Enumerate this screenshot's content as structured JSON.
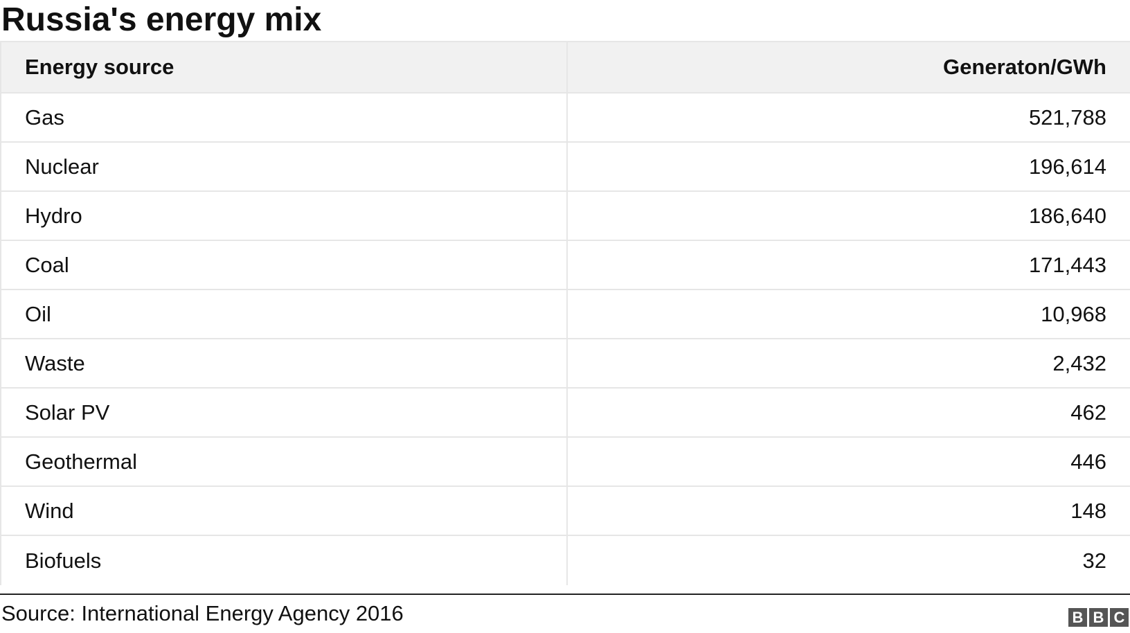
{
  "chart_data": {
    "type": "table",
    "title": "Russia's energy mix",
    "columns": [
      "Energy source",
      "Generaton/GWh"
    ],
    "rows": [
      {
        "source": "Gas",
        "generation": "521,788"
      },
      {
        "source": "Nuclear",
        "generation": "196,614"
      },
      {
        "source": "Hydro",
        "generation": "186,640"
      },
      {
        "source": "Coal",
        "generation": "171,443"
      },
      {
        "source": "Oil",
        "generation": "10,968"
      },
      {
        "source": "Waste",
        "generation": "2,432"
      },
      {
        "source": "Solar PV",
        "generation": "462"
      },
      {
        "source": "Geothermal",
        "generation": "446"
      },
      {
        "source": "Wind",
        "generation": "148"
      },
      {
        "source": "Biofuels",
        "generation": "32"
      }
    ],
    "values": [
      521788,
      196614,
      186640,
      171443,
      10968,
      2432,
      462,
      446,
      148,
      32
    ],
    "categories": [
      "Gas",
      "Nuclear",
      "Hydro",
      "Coal",
      "Oil",
      "Waste",
      "Solar PV",
      "Geothermal",
      "Wind",
      "Biofuels"
    ]
  },
  "footer": {
    "source": "Source: International Energy Agency 2016",
    "logo_letters": [
      "B",
      "B",
      "C"
    ]
  },
  "colors": {
    "header_bg": "#f1f1f1",
    "grid": "#e6e6e6",
    "text": "#111111",
    "logo_bg": "#555555"
  }
}
